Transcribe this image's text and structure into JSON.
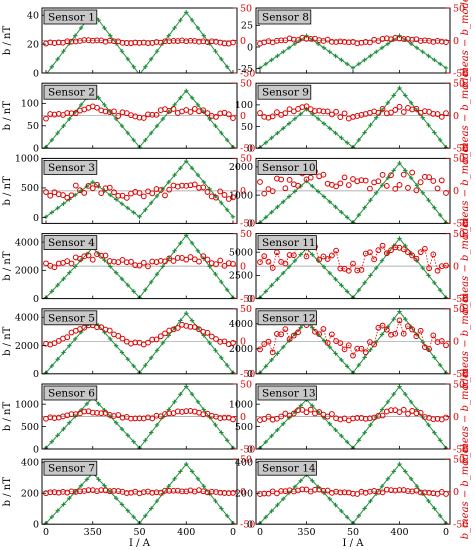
{
  "colors": {
    "model": "#1f8f3a",
    "residual": "#e00000",
    "frame": "#000000",
    "label_box": "#c8c8c8"
  },
  "labels": {
    "ylabel": "b / nT",
    "xlabel": "I / A",
    "right_ylabel": "b_meas − b_model"
  },
  "chart_data": [
    {
      "type": "scatter",
      "sensor": "Sensor 1",
      "column": 0,
      "row": 0,
      "ylim": [
        0,
        45
      ],
      "yticks": [
        0,
        20,
        40
      ],
      "rlim": [
        -50,
        50
      ],
      "rticks": [
        -50,
        0,
        50
      ],
      "xticks": [
        "0",
        "350",
        "50",
        "400",
        "0"
      ],
      "left": {
        "amp": [
          44,
          44
        ],
        "base": [
          -2,
          -2
        ]
      },
      "residual": {
        "offset": -2,
        "amp": 4,
        "noise": 1.2
      }
    },
    {
      "type": "scatter",
      "sensor": "Sensor 2",
      "column": 0,
      "row": 1,
      "ylim": [
        0,
        145
      ],
      "yticks": [
        0,
        50,
        100
      ],
      "rlim": [
        -50,
        50
      ],
      "rticks": [
        -50,
        0,
        50
      ],
      "xticks": [
        "0",
        "350",
        "50",
        "400",
        "0"
      ],
      "left": {
        "amp": [
          128,
          128
        ],
        "base": [
          0,
          0
        ]
      },
      "residual": {
        "offset": 5,
        "amp": 10,
        "noise": 5
      }
    },
    {
      "type": "scatter",
      "sensor": "Sensor 3",
      "column": 0,
      "row": 2,
      "ylim": [
        -100,
        1000
      ],
      "yticks": [
        0,
        500,
        1000
      ],
      "rlim": [
        -50,
        50
      ],
      "rticks": [
        -50,
        0,
        50
      ],
      "xticks": [
        "0",
        "350",
        "50",
        "400",
        "0"
      ],
      "left": {
        "amp": [
          600,
          960
        ],
        "base": [
          0,
          0
        ]
      },
      "residual": {
        "offset": -2,
        "amp": 12,
        "noise": 8
      }
    },
    {
      "type": "scatter",
      "sensor": "Sensor 4",
      "column": 0,
      "row": 3,
      "ylim": [
        0,
        4600
      ],
      "yticks": [
        0,
        2000,
        4000
      ],
      "rlim": [
        -50,
        50
      ],
      "rticks": [
        -50,
        0,
        50
      ],
      "xticks": [
        "0",
        "350",
        "50",
        "400",
        "0"
      ],
      "left": {
        "amp": [
          3600,
          4500
        ],
        "base": [
          0,
          0
        ]
      },
      "residual": {
        "offset": 8,
        "amp": 12,
        "noise": 5
      }
    },
    {
      "type": "scatter",
      "sensor": "Sensor 5",
      "column": 0,
      "row": 4,
      "ylim": [
        0,
        4600
      ],
      "yticks": [
        0,
        2000,
        4000
      ],
      "rlim": [
        -50,
        50
      ],
      "rticks": [
        -50,
        0,
        50
      ],
      "xticks": [
        "0",
        "350",
        "50",
        "400",
        "0"
      ],
      "left": {
        "amp": [
          3900,
          4300
        ],
        "base": [
          0,
          0
        ]
      },
      "residual": {
        "offset": 10,
        "amp": 28,
        "noise": 2
      }
    },
    {
      "type": "scatter",
      "sensor": "Sensor 6",
      "column": 0,
      "row": 5,
      "ylim": [
        0,
        1450
      ],
      "yticks": [
        0,
        500,
        1000
      ],
      "rlim": [
        -50,
        50
      ],
      "rticks": [
        -50,
        0,
        50
      ],
      "xticks": [
        "0",
        "350",
        "50",
        "400",
        "0"
      ],
      "left": {
        "amp": [
          1150,
          1400
        ],
        "base": [
          0,
          0
        ]
      },
      "residual": {
        "offset": 2,
        "amp": 10,
        "noise": 2
      }
    },
    {
      "type": "scatter",
      "sensor": "Sensor 7",
      "column": 0,
      "row": 6,
      "ylim": [
        0,
        420
      ],
      "yticks": [
        0,
        200,
        400
      ],
      "rlim": [
        -50,
        50
      ],
      "rticks": [
        -50,
        0,
        50
      ],
      "xticks": [
        "0",
        "350",
        "50",
        "400",
        "0"
      ],
      "left": {
        "amp": [
          330,
          390
        ],
        "base": [
          0,
          0
        ]
      },
      "residual": {
        "offset": 0,
        "amp": 3,
        "noise": 1.5
      }
    },
    {
      "type": "scatter",
      "sensor": "Sensor 8",
      "column": 1,
      "row": 0,
      "ylim": [
        -30,
        45
      ],
      "yticks": [
        -25,
        0,
        25
      ],
      "rlim": [
        -50,
        50
      ],
      "rticks": [
        -50,
        0,
        50
      ],
      "xticks": [
        "0",
        "350",
        "50",
        "400",
        "0"
      ],
      "left": {
        "amp": [
          38,
          38
        ],
        "base": [
          -25,
          -25
        ]
      },
      "residual": {
        "offset": 0,
        "amp": 6,
        "noise": 2
      }
    },
    {
      "type": "scatter",
      "sensor": "Sensor 9",
      "column": 1,
      "row": 1,
      "ylim": [
        0,
        150
      ],
      "yticks": [
        0,
        50,
        100
      ],
      "rlim": [
        -50,
        50
      ],
      "rticks": [
        -50,
        0,
        50
      ],
      "xticks": [
        "0",
        "350",
        "50",
        "400",
        "0"
      ],
      "left": {
        "amp": [
          90,
          140
        ],
        "base": [
          0,
          0
        ]
      },
      "residual": {
        "offset": 5,
        "amp": 10,
        "noise": 5
      }
    },
    {
      "type": "scatter",
      "sensor": "Sensor 10",
      "column": 1,
      "row": 2,
      "ylim": [
        0,
        2300
      ],
      "yticks": [
        0,
        1000,
        2000
      ],
      "rlim": [
        -50,
        50
      ],
      "rticks": [
        -50,
        0,
        50
      ],
      "xticks": [
        "0",
        "350",
        "50",
        "400",
        "0"
      ],
      "left": {
        "amp": [
          1500,
          2150
        ],
        "base": [
          0,
          0
        ]
      },
      "residual": {
        "offset": 12,
        "amp": 10,
        "noise": 14
      }
    },
    {
      "type": "scatter",
      "sensor": "Sensor 11",
      "column": 1,
      "row": 3,
      "ylim": [
        0,
        7000
      ],
      "yticks": [
        0,
        2500,
        5000
      ],
      "rlim": [
        -50,
        50
      ],
      "rticks": [
        -50,
        0,
        50
      ],
      "xticks": [
        "0",
        "350",
        "50",
        "400",
        "0"
      ],
      "left": {
        "amp": [
          5400,
          6500
        ],
        "base": [
          0,
          0
        ]
      },
      "residual": {
        "offset": 15,
        "amp": 22,
        "noise": 14,
        "dotted": true
      }
    },
    {
      "type": "scatter",
      "sensor": "Sensor 12",
      "column": 1,
      "row": 4,
      "ylim": [
        0,
        5200
      ],
      "yticks": [
        0,
        2000,
        4000
      ],
      "rlim": [
        -50,
        50
      ],
      "rticks": [
        -50,
        0,
        50
      ],
      "xticks": [
        "0",
        "350",
        "50",
        "400",
        "0"
      ],
      "left": {
        "amp": [
          4200,
          5000
        ],
        "base": [
          0,
          0
        ]
      },
      "residual": {
        "offset": 5,
        "amp": 30,
        "noise": 14,
        "dotted": true
      }
    },
    {
      "type": "scatter",
      "sensor": "Sensor 13",
      "column": 1,
      "row": 5,
      "ylim": [
        0,
        1450
      ],
      "yticks": [
        0,
        500,
        1000
      ],
      "rlim": [
        -50,
        50
      ],
      "rticks": [
        -50,
        0,
        50
      ],
      "xticks": [
        "0",
        "350",
        "50",
        "400",
        "0"
      ],
      "left": {
        "amp": [
          1100,
          1400
        ],
        "base": [
          0,
          0
        ]
      },
      "residual": {
        "offset": 2,
        "amp": 12,
        "noise": 3
      }
    },
    {
      "type": "scatter",
      "sensor": "Sensor 14",
      "column": 1,
      "row": 6,
      "ylim": [
        0,
        420
      ],
      "yticks": [
        0,
        200,
        400
      ],
      "rlim": [
        -50,
        50
      ],
      "rticks": [
        -50,
        0,
        50
      ],
      "xticks": [
        "0",
        "350",
        "50",
        "400",
        "0"
      ],
      "left": {
        "amp": [
          320,
          390
        ],
        "base": [
          0,
          0
        ]
      },
      "residual": {
        "offset": 0,
        "amp": 4,
        "noise": 2
      }
    }
  ]
}
